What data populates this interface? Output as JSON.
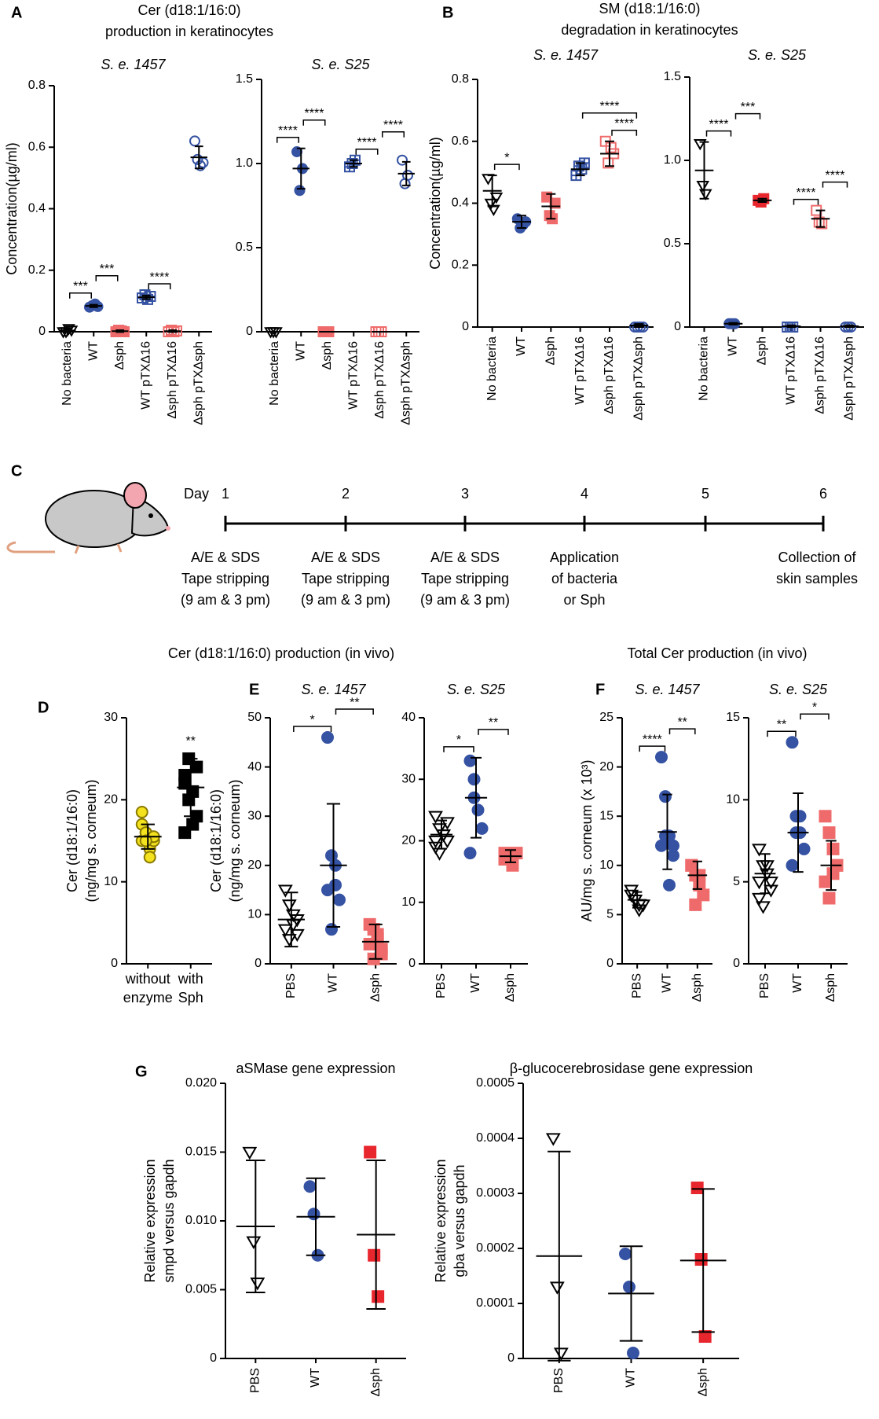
{
  "panel_labels": [
    "A",
    "B",
    "C",
    "D",
    "E",
    "F",
    "G"
  ],
  "headings": [
    [
      "Cer (d18:1/16:0)",
      "production in keratinocytes"
    ],
    [
      "SM (d18:1/16:0)",
      "degradation in keratinocytes"
    ],
    [
      "Cer (d18:1/16:0) production (in vivo)"
    ],
    [
      "Total Cer production (in vivo)"
    ]
  ],
  "timeline": {
    "day_label": "Day",
    "days": [
      1,
      2,
      3,
      4,
      5,
      6
    ],
    "steps": [
      [
        "A/E & SDS",
        "Tape stripping",
        "(9 am & 3 pm)"
      ],
      [
        "A/E & SDS",
        "Tape stripping",
        "(9 am & 3 pm)"
      ],
      [
        "A/E & SDS",
        "Tape stripping",
        "(9 am & 3 pm)"
      ],
      [
        "Application",
        "of bacteria",
        "or Sph"
      ],
      null,
      [
        "Collection of",
        "skin samples"
      ]
    ]
  },
  "chart_data": [
    {
      "type": "dot",
      "subtitle": "S. e. 1457",
      "ylabel": [
        "Concentration(µg/ml)"
      ],
      "rotate_labels": true,
      "categories": [
        "No bacteria",
        "WT",
        "Δsph",
        "WT pTXΔ16",
        "Δsph pTXΔ16",
        "Δsph pTXΔsph"
      ],
      "points": [
        [
          0,
          0,
          0.01,
          0.005
        ],
        [
          0.08,
          0.085,
          0.09,
          0.082
        ],
        [
          0,
          0.005,
          0.003,
          0
        ],
        [
          0.11,
          0.12,
          0.105,
          0.115
        ],
        [
          0,
          0.005,
          0,
          0.003
        ],
        [
          0.62,
          0.56,
          0.54,
          0.55
        ]
      ],
      "means": [
        0.004,
        0.084,
        0.002,
        0.112,
        0.002,
        0.567
      ],
      "errors": [
        0.005,
        0.004,
        0.003,
        0.006,
        0.003,
        0.036
      ],
      "markers": [
        "triangle-down",
        "circle",
        "square",
        "square-plus",
        "square",
        "circle"
      ],
      "colors": [
        "#000000",
        "#3552a3",
        "#ef6b6b",
        "#3552a3",
        "#ef6b6b",
        "#3552a3"
      ],
      "filled": [
        false,
        true,
        true,
        false,
        false,
        false
      ],
      "brackets": [
        {
          "from": 0,
          "to": 1,
          "label": "***"
        },
        {
          "from": 1,
          "to": 2,
          "label": "***"
        },
        {
          "from": 3,
          "to": 4,
          "label": "****"
        }
      ],
      "ylim": [
        0,
        0.8
      ],
      "yticks": [
        0,
        0.2,
        0.4,
        0.6,
        0.8
      ]
    },
    {
      "type": "dot",
      "subtitle": "S. e. S25",
      "rotate_labels": true,
      "categories": [
        "No bacteria",
        "WT",
        "Δsph",
        "WT pTXΔ16",
        "Δsph pTXΔ16",
        "Δsph pTXΔsph"
      ],
      "points": [
        [
          0,
          0,
          0
        ],
        [
          1.07,
          0.84,
          0.97
        ],
        [
          0,
          0,
          0
        ],
        [
          0.98,
          1.0,
          1.02
        ],
        [
          0,
          0,
          0
        ],
        [
          1.02,
          0.88,
          0.93
        ]
      ],
      "means": [
        0,
        0.97,
        0,
        1.0,
        0,
        0.94
      ],
      "errors": [
        0,
        0.12,
        0,
        0.02,
        0,
        0.07
      ],
      "markers": [
        "triangle-down",
        "circle",
        "square",
        "square-plus",
        "square",
        "circle"
      ],
      "colors": [
        "#000000",
        "#3552a3",
        "#ef6b6b",
        "#3552a3",
        "#ef6b6b",
        "#3552a3"
      ],
      "filled": [
        false,
        true,
        true,
        false,
        false,
        false
      ],
      "brackets": [
        {
          "from": 0,
          "to": 1,
          "label": "****"
        },
        {
          "from": 1,
          "to": 2,
          "label": "****"
        },
        {
          "from": 3,
          "to": 4,
          "label": "****"
        },
        {
          "from": 4,
          "to": 5,
          "label": "****"
        }
      ],
      "ylim": [
        0,
        1.5
      ],
      "yticks": [
        0,
        0.5,
        {
          "value": 1,
          "label": "1.0"
        },
        1.5
      ]
    },
    {
      "type": "dot",
      "subtitle": "S. e. 1457",
      "ylabel": [
        "Concentration(µg/ml)"
      ],
      "rotate_labels": true,
      "categories": [
        "No bacteria",
        "WT",
        "Δsph",
        "WT pTXΔ16",
        "Δsph pTXΔ16",
        "Δsph pTXΔsph"
      ],
      "points": [
        [
          0.48,
          0.4,
          0.38,
          0.42
        ],
        [
          0.35,
          0.32,
          0.33,
          0.34
        ],
        [
          0.42,
          0.36,
          0.35,
          0.4
        ],
        [
          0.49,
          0.52,
          0.51,
          0.53
        ],
        [
          0.6,
          0.53,
          0.58,
          0.56
        ],
        [
          0,
          0,
          0,
          0
        ]
      ],
      "means": [
        0.44,
        0.34,
        0.39,
        0.51,
        0.56,
        0.005
      ],
      "errors": [
        0.05,
        0.02,
        0.04,
        0.02,
        0.04,
        0.005
      ],
      "markers": [
        "triangle-down",
        "circle",
        "square",
        "square-plus",
        "square",
        "circle"
      ],
      "colors": [
        "#000000",
        "#3552a3",
        "#ef6b6b",
        "#3552a3",
        "#ef6b6b",
        "#3552a3"
      ],
      "filled": [
        false,
        true,
        true,
        false,
        false,
        false
      ],
      "brackets": [
        {
          "from": 0,
          "to": 1,
          "label": "*"
        },
        {
          "from": 4,
          "to": 5,
          "label": "****"
        },
        {
          "from": 3,
          "to": 5,
          "label": "****"
        }
      ],
      "ylim": [
        0,
        0.8
      ],
      "yticks": [
        0,
        0.2,
        0.4,
        0.6,
        0.8
      ]
    },
    {
      "type": "dot",
      "subtitle": "S. e. S25",
      "rotate_labels": true,
      "categories": [
        "No bacteria",
        "WT",
        "Δsph",
        "WT pTXΔ16",
        "Δsph pTXΔ16",
        "Δsph pTXΔsph"
      ],
      "points": [
        [
          1.1,
          0.85,
          0.8
        ],
        [
          0.02,
          0.02,
          0.02
        ],
        [
          0.76,
          0.75,
          0.77
        ],
        [
          0,
          0,
          0
        ],
        [
          0.7,
          0.63,
          0.62
        ],
        [
          0,
          0,
          0
        ]
      ],
      "means": [
        0.94,
        0.02,
        0.76,
        0.005,
        0.65,
        0.005
      ],
      "errors": [
        0.17,
        0.005,
        0.01,
        0.005,
        0.05,
        0.005
      ],
      "markers": [
        "triangle-down",
        "circle",
        "square",
        "square-plus",
        "square",
        "circle"
      ],
      "colors": [
        "#000000",
        "#3552a3",
        "#e8262d",
        "#3552a3",
        "#ef6b6b",
        "#3552a3"
      ],
      "filled": [
        false,
        true,
        true,
        false,
        false,
        false
      ],
      "brackets": [
        {
          "from": 0,
          "to": 1,
          "label": "****"
        },
        {
          "from": 1,
          "to": 2,
          "label": "***"
        },
        {
          "from": 3,
          "to": 4,
          "label": "****"
        },
        {
          "from": 4,
          "to": 5,
          "label": "****"
        }
      ],
      "ylim": [
        0,
        1.5
      ],
      "yticks": [
        0,
        0.5,
        {
          "value": 1,
          "label": "1.0"
        },
        1.5
      ]
    },
    {
      "type": "dot",
      "ylabel": [
        "Cer (d18:1/16:0)",
        "(ng/mg s. corneum)"
      ],
      "rotate_labels": false,
      "categories": [
        "without enzyme",
        "with Sph"
      ],
      "points": [
        [
          15,
          16,
          14,
          15,
          17,
          16,
          13,
          15.5,
          18.5,
          15
        ],
        [
          22,
          25,
          21,
          18,
          23,
          20,
          17,
          24,
          16
        ]
      ],
      "means": [
        15.5,
        21.5
      ],
      "errors": [
        1.5,
        3.5
      ],
      "markers": [
        "circle",
        "square"
      ],
      "colors": [
        "#f4e21e",
        "#000000"
      ],
      "filled": [
        true,
        true
      ],
      "brackets": [
        {
          "from": 1,
          "to": 1,
          "label": "**"
        }
      ],
      "ylim": [
        0,
        30
      ],
      "yticks": [
        0,
        10,
        20,
        30
      ]
    },
    {
      "type": "dot",
      "subtitle": "S. e. 1457",
      "ylabel": [
        "Cer (d18:1/16:0)",
        "(ng/mg s. corneum)"
      ],
      "rotate_labels": true,
      "categories": [
        "PBS",
        "WT",
        "Δsph"
      ],
      "points": [
        [
          15,
          12,
          8,
          6,
          7,
          5,
          10,
          9
        ],
        [
          46,
          22,
          16,
          13,
          15,
          7,
          20
        ],
        [
          8,
          7,
          5,
          3,
          4,
          1,
          6,
          2
        ]
      ],
      "means": [
        9,
        20,
        4.5
      ],
      "errors": [
        5.5,
        12.5,
        3.5
      ],
      "markers": [
        "triangle-down",
        "circle",
        "square"
      ],
      "colors": [
        "#000000",
        "#3552a3",
        "#ef6b6b"
      ],
      "filled": [
        false,
        true,
        true
      ],
      "brackets": [
        {
          "from": 0,
          "to": 1,
          "label": "*"
        },
        {
          "from": 1,
          "to": 2,
          "label": "**"
        }
      ],
      "ylim": [
        0,
        50
      ],
      "yticks": [
        0,
        10,
        20,
        30,
        40,
        50
      ]
    },
    {
      "type": "dot",
      "subtitle": "S. e. S25",
      "rotate_labels": true,
      "categories": [
        "PBS",
        "WT",
        "Δsph"
      ],
      "points": [
        [
          24,
          22,
          21,
          20,
          19,
          18,
          21,
          23,
          20
        ],
        [
          33,
          27,
          25,
          22,
          18,
          30
        ],
        [
          18,
          17,
          16,
          18,
          17
        ]
      ],
      "means": [
        21,
        27,
        17.5
      ],
      "errors": [
        2.3,
        6.5,
        1
      ],
      "markers": [
        "triangle-down",
        "circle",
        "square"
      ],
      "colors": [
        "#000000",
        "#3552a3",
        "#ef6b6b"
      ],
      "filled": [
        false,
        true,
        true
      ],
      "brackets": [
        {
          "from": 0,
          "to": 1,
          "label": "*"
        },
        {
          "from": 1,
          "to": 2,
          "label": "**"
        }
      ],
      "ylim": [
        0,
        40
      ],
      "yticks": [
        0,
        10,
        20,
        30,
        40
      ]
    },
    {
      "type": "dot",
      "subtitle": "S. e. 1457",
      "ylabel": [
        "AU/mg s. corneum (x 10³)"
      ],
      "rotate_labels": true,
      "categories": [
        "PBS",
        "WT",
        "Δsph"
      ],
      "points": [
        [
          7,
          6.5,
          6,
          6,
          7.5,
          6.5,
          5.5
        ],
        [
          21,
          17,
          13,
          11,
          12,
          13,
          8,
          12
        ],
        [
          10,
          9,
          8,
          7,
          10,
          6,
          9
        ]
      ],
      "means": [
        6.5,
        13.4,
        9
      ],
      "errors": [
        0.8,
        3.8,
        1.4
      ],
      "markers": [
        "triangle-down",
        "circle",
        "square"
      ],
      "colors": [
        "#000000",
        "#3552a3",
        "#ef6b6b"
      ],
      "filled": [
        false,
        true,
        true
      ],
      "brackets": [
        {
          "from": 0,
          "to": 1,
          "label": "****"
        },
        {
          "from": 1,
          "to": 2,
          "label": "**"
        }
      ],
      "ylim": [
        0,
        25
      ],
      "yticks": [
        0,
        5,
        10,
        15,
        20,
        25
      ]
    },
    {
      "type": "dot",
      "subtitle": "S. e. S25",
      "rotate_labels": true,
      "categories": [
        "PBS",
        "WT",
        "Δsph"
      ],
      "points": [
        [
          7,
          6,
          5.5,
          5,
          4,
          3.5,
          6,
          4.5,
          5
        ],
        [
          13.5,
          9,
          8,
          7,
          6,
          8,
          9
        ],
        [
          9,
          8,
          7,
          6,
          5,
          4,
          5.5,
          6
        ]
      ],
      "means": [
        5.5,
        8,
        6
      ],
      "errors": [
        1.2,
        2.4,
        1.5
      ],
      "markers": [
        "triangle-down",
        "circle",
        "square"
      ],
      "colors": [
        "#000000",
        "#3552a3",
        "#ef6b6b"
      ],
      "filled": [
        false,
        true,
        true
      ],
      "brackets": [
        {
          "from": 0,
          "to": 1,
          "label": "**"
        },
        {
          "from": 1,
          "to": 2,
          "label": "*"
        }
      ],
      "ylim": [
        0,
        15
      ],
      "yticks": [
        0,
        5,
        10,
        15
      ]
    },
    {
      "type": "dot",
      "title": "aSMase gene expression",
      "ylabel": [
        "Relative expression",
        "smpd versus gapdh"
      ],
      "rotate_labels": true,
      "categories": [
        "PBS",
        "WT",
        "Δsph"
      ],
      "points": [
        [
          0.015,
          0.0085,
          0.0055
        ],
        [
          0.0125,
          0.0105,
          0.0075
        ],
        [
          0.015,
          0.0075,
          0.0045
        ]
      ],
      "means": [
        0.0096,
        0.0103,
        0.009
      ],
      "errors": [
        0.0048,
        0.0028,
        0.0054
      ],
      "markers": [
        "triangle-down",
        "circle",
        "square"
      ],
      "colors": [
        "#000000",
        "#3552a3",
        "#e8262d"
      ],
      "filled": [
        false,
        true,
        true
      ],
      "ylim": [
        0,
        0.02
      ],
      "yticks": [
        0,
        0.005,
        {
          "value": 0.01,
          "label": "0.010"
        },
        0.015,
        {
          "value": 0.02,
          "label": "0.020"
        }
      ]
    },
    {
      "type": "dot",
      "title": "β-glucocerebrosidase gene expression",
      "ylabel": [
        "Relative expression",
        "gba versus gapdh"
      ],
      "rotate_labels": true,
      "categories": [
        "PBS",
        "WT",
        "Δsph"
      ],
      "points": [
        [
          0.0004,
          0.00013,
          1e-05
        ],
        [
          0.00019,
          0.00013,
          1e-05
        ],
        [
          0.00031,
          0.00018,
          4e-05
        ]
      ],
      "means": [
        0.000186,
        0.000118,
        0.000178
      ],
      "errors": [
        0.00019,
        8.6e-05,
        0.00013
      ],
      "markers": [
        "triangle-down",
        "circle",
        "square"
      ],
      "colors": [
        "#000000",
        "#3552a3",
        "#e8262d"
      ],
      "filled": [
        false,
        true,
        true
      ],
      "ylim": [
        0,
        0.0005
      ],
      "yticks": [
        0,
        0.0001,
        0.0002,
        0.0003,
        0.0004,
        0.0005
      ]
    }
  ]
}
